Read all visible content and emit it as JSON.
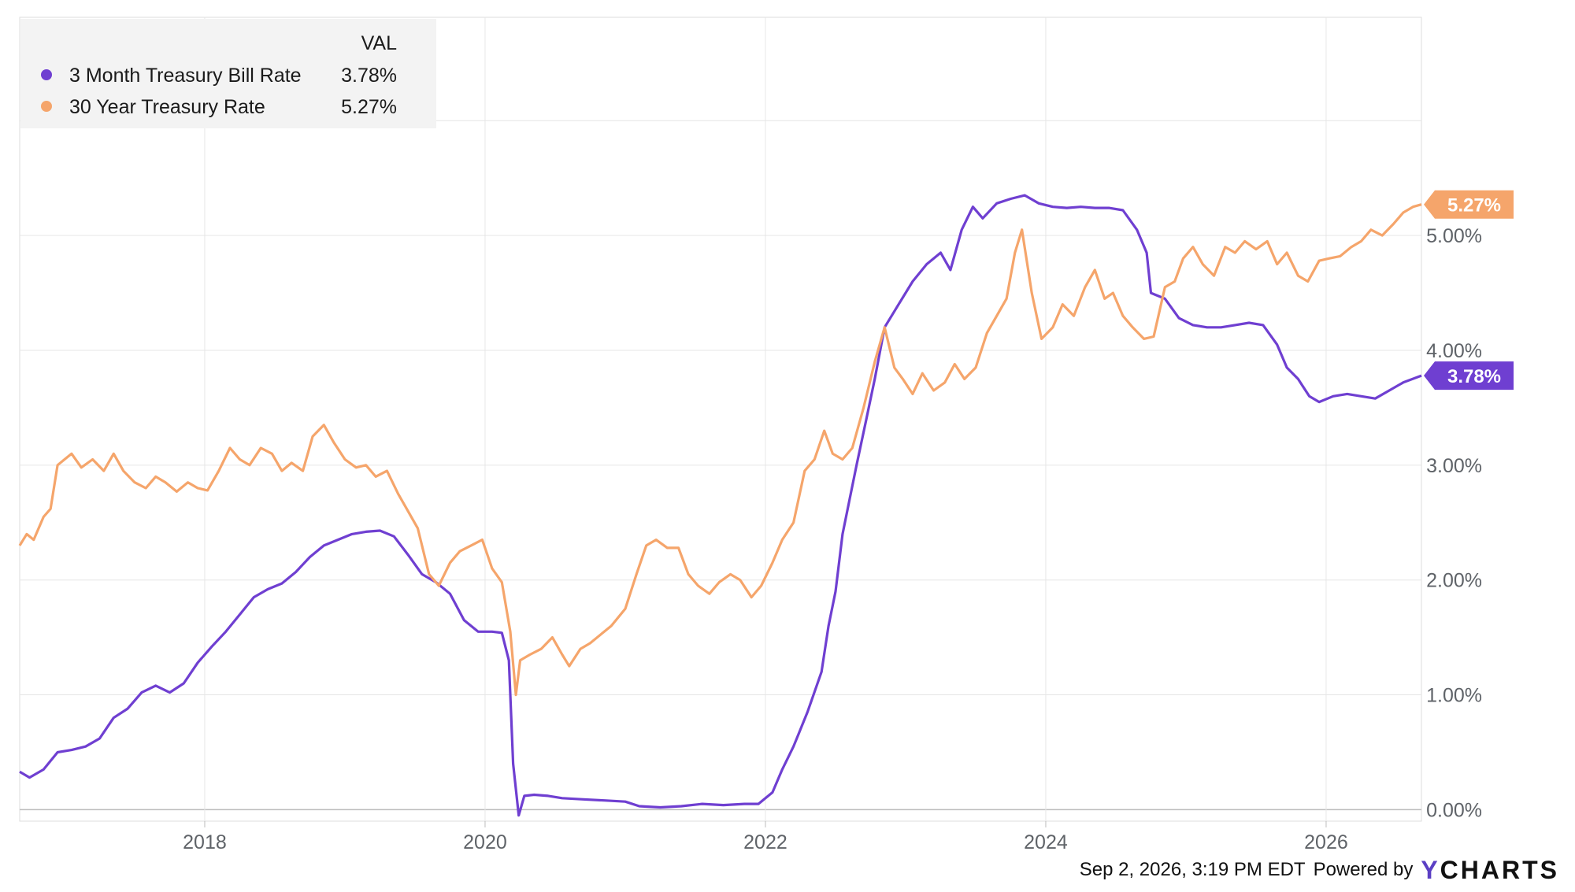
{
  "chart_data": {
    "type": "line",
    "legend": {
      "header": "VAL",
      "placement": "top-left",
      "entries": [
        {
          "name": "3 Month Treasury Bill Rate",
          "value": "3.78%",
          "color": "#6f3fd1"
        },
        {
          "name": "30 Year Treasury Rate",
          "value": "5.27%",
          "color": "#f5a56b"
        }
      ]
    },
    "x_ticks": [
      "2018",
      "2020",
      "2022",
      "2024",
      "2026"
    ],
    "x_tick_values": [
      2018,
      2020,
      2022,
      2024,
      2026
    ],
    "xlim": [
      2016.68,
      2026.68
    ],
    "y_ticks": [
      "0.00%",
      "1.00%",
      "2.00%",
      "3.00%",
      "4.00%",
      "5.00%"
    ],
    "y_tick_values": [
      0,
      1,
      2,
      3,
      4,
      5
    ],
    "ylim": [
      -0.1,
      6.9
    ],
    "grid": true,
    "series": [
      {
        "name": "3 Month Treasury Bill Rate",
        "color": "#6f3fd1",
        "end_label": "3.78%",
        "points": [
          [
            2016.68,
            0.33
          ],
          [
            2016.75,
            0.28
          ],
          [
            2016.85,
            0.35
          ],
          [
            2016.95,
            0.5
          ],
          [
            2017.05,
            0.52
          ],
          [
            2017.15,
            0.55
          ],
          [
            2017.25,
            0.62
          ],
          [
            2017.35,
            0.8
          ],
          [
            2017.45,
            0.88
          ],
          [
            2017.55,
            1.02
          ],
          [
            2017.65,
            1.08
          ],
          [
            2017.75,
            1.02
          ],
          [
            2017.85,
            1.1
          ],
          [
            2017.95,
            1.28
          ],
          [
            2018.05,
            1.42
          ],
          [
            2018.15,
            1.55
          ],
          [
            2018.25,
            1.7
          ],
          [
            2018.35,
            1.85
          ],
          [
            2018.45,
            1.92
          ],
          [
            2018.55,
            1.97
          ],
          [
            2018.65,
            2.07
          ],
          [
            2018.75,
            2.2
          ],
          [
            2018.85,
            2.3
          ],
          [
            2018.95,
            2.35
          ],
          [
            2019.05,
            2.4
          ],
          [
            2019.15,
            2.42
          ],
          [
            2019.25,
            2.43
          ],
          [
            2019.35,
            2.38
          ],
          [
            2019.45,
            2.22
          ],
          [
            2019.55,
            2.05
          ],
          [
            2019.65,
            1.98
          ],
          [
            2019.75,
            1.88
          ],
          [
            2019.85,
            1.65
          ],
          [
            2019.95,
            1.55
          ],
          [
            2020.05,
            1.55
          ],
          [
            2020.12,
            1.54
          ],
          [
            2020.17,
            1.3
          ],
          [
            2020.2,
            0.4
          ],
          [
            2020.24,
            -0.05
          ],
          [
            2020.28,
            0.12
          ],
          [
            2020.35,
            0.13
          ],
          [
            2020.45,
            0.12
          ],
          [
            2020.55,
            0.1
          ],
          [
            2020.7,
            0.09
          ],
          [
            2020.85,
            0.08
          ],
          [
            2021.0,
            0.07
          ],
          [
            2021.1,
            0.03
          ],
          [
            2021.25,
            0.02
          ],
          [
            2021.4,
            0.03
          ],
          [
            2021.55,
            0.05
          ],
          [
            2021.7,
            0.04
          ],
          [
            2021.85,
            0.05
          ],
          [
            2021.95,
            0.05
          ],
          [
            2022.05,
            0.15
          ],
          [
            2022.12,
            0.35
          ],
          [
            2022.2,
            0.55
          ],
          [
            2022.3,
            0.85
          ],
          [
            2022.4,
            1.2
          ],
          [
            2022.45,
            1.6
          ],
          [
            2022.5,
            1.9
          ],
          [
            2022.55,
            2.4
          ],
          [
            2022.6,
            2.7
          ],
          [
            2022.65,
            3.0
          ],
          [
            2022.72,
            3.4
          ],
          [
            2022.78,
            3.75
          ],
          [
            2022.85,
            4.2
          ],
          [
            2022.95,
            4.4
          ],
          [
            2023.05,
            4.6
          ],
          [
            2023.15,
            4.75
          ],
          [
            2023.25,
            4.85
          ],
          [
            2023.32,
            4.7
          ],
          [
            2023.4,
            5.05
          ],
          [
            2023.48,
            5.25
          ],
          [
            2023.55,
            5.15
          ],
          [
            2023.65,
            5.28
          ],
          [
            2023.75,
            5.32
          ],
          [
            2023.85,
            5.35
          ],
          [
            2023.95,
            5.28
          ],
          [
            2024.05,
            5.25
          ],
          [
            2024.15,
            5.24
          ],
          [
            2024.25,
            5.25
          ],
          [
            2024.35,
            5.24
          ],
          [
            2024.45,
            5.24
          ],
          [
            2024.55,
            5.22
          ],
          [
            2024.65,
            5.05
          ],
          [
            2024.72,
            4.85
          ],
          [
            2024.75,
            4.5
          ],
          [
            2024.85,
            4.45
          ],
          [
            2024.95,
            4.28
          ],
          [
            2025.05,
            4.22
          ],
          [
            2025.15,
            4.2
          ],
          [
            2025.25,
            4.2
          ],
          [
            2025.35,
            4.22
          ],
          [
            2025.45,
            4.24
          ],
          [
            2025.55,
            4.22
          ],
          [
            2025.65,
            4.05
          ],
          [
            2025.72,
            3.85
          ],
          [
            2025.8,
            3.75
          ],
          [
            2025.88,
            3.6
          ],
          [
            2025.95,
            3.55
          ],
          [
            2026.05,
            3.6
          ],
          [
            2026.15,
            3.62
          ],
          [
            2026.25,
            3.6
          ],
          [
            2026.35,
            3.58
          ],
          [
            2026.45,
            3.65
          ],
          [
            2026.55,
            3.72
          ],
          [
            2026.68,
            3.78
          ]
        ]
      },
      {
        "name": "30 Year Treasury Rate",
        "color": "#f5a56b",
        "end_label": "5.27%",
        "points": [
          [
            2016.68,
            2.3
          ],
          [
            2016.73,
            2.4
          ],
          [
            2016.78,
            2.35
          ],
          [
            2016.85,
            2.55
          ],
          [
            2016.9,
            2.62
          ],
          [
            2016.95,
            3.0
          ],
          [
            2017.0,
            3.05
          ],
          [
            2017.05,
            3.1
          ],
          [
            2017.12,
            2.98
          ],
          [
            2017.2,
            3.05
          ],
          [
            2017.28,
            2.95
          ],
          [
            2017.35,
            3.1
          ],
          [
            2017.42,
            2.95
          ],
          [
            2017.5,
            2.85
          ],
          [
            2017.58,
            2.8
          ],
          [
            2017.65,
            2.9
          ],
          [
            2017.72,
            2.85
          ],
          [
            2017.8,
            2.77
          ],
          [
            2017.88,
            2.85
          ],
          [
            2017.95,
            2.8
          ],
          [
            2018.02,
            2.78
          ],
          [
            2018.1,
            2.95
          ],
          [
            2018.18,
            3.15
          ],
          [
            2018.25,
            3.05
          ],
          [
            2018.32,
            3.0
          ],
          [
            2018.4,
            3.15
          ],
          [
            2018.48,
            3.1
          ],
          [
            2018.55,
            2.95
          ],
          [
            2018.62,
            3.02
          ],
          [
            2018.7,
            2.95
          ],
          [
            2018.77,
            3.25
          ],
          [
            2018.85,
            3.35
          ],
          [
            2018.92,
            3.2
          ],
          [
            2019.0,
            3.05
          ],
          [
            2019.08,
            2.98
          ],
          [
            2019.15,
            3.0
          ],
          [
            2019.22,
            2.9
          ],
          [
            2019.3,
            2.95
          ],
          [
            2019.38,
            2.75
          ],
          [
            2019.45,
            2.6
          ],
          [
            2019.52,
            2.45
          ],
          [
            2019.6,
            2.05
          ],
          [
            2019.67,
            1.95
          ],
          [
            2019.75,
            2.15
          ],
          [
            2019.82,
            2.25
          ],
          [
            2019.9,
            2.3
          ],
          [
            2019.98,
            2.35
          ],
          [
            2020.05,
            2.1
          ],
          [
            2020.12,
            1.98
          ],
          [
            2020.18,
            1.55
          ],
          [
            2020.22,
            1.0
          ],
          [
            2020.25,
            1.3
          ],
          [
            2020.32,
            1.35
          ],
          [
            2020.4,
            1.4
          ],
          [
            2020.48,
            1.5
          ],
          [
            2020.55,
            1.35
          ],
          [
            2020.6,
            1.25
          ],
          [
            2020.68,
            1.4
          ],
          [
            2020.75,
            1.45
          ],
          [
            2020.82,
            1.52
          ],
          [
            2020.9,
            1.6
          ],
          [
            2021.0,
            1.75
          ],
          [
            2021.08,
            2.05
          ],
          [
            2021.15,
            2.3
          ],
          [
            2021.22,
            2.35
          ],
          [
            2021.3,
            2.28
          ],
          [
            2021.38,
            2.28
          ],
          [
            2021.45,
            2.05
          ],
          [
            2021.52,
            1.95
          ],
          [
            2021.6,
            1.88
          ],
          [
            2021.67,
            1.98
          ],
          [
            2021.75,
            2.05
          ],
          [
            2021.82,
            2.0
          ],
          [
            2021.9,
            1.85
          ],
          [
            2021.97,
            1.95
          ],
          [
            2022.05,
            2.15
          ],
          [
            2022.12,
            2.35
          ],
          [
            2022.2,
            2.5
          ],
          [
            2022.28,
            2.95
          ],
          [
            2022.35,
            3.05
          ],
          [
            2022.42,
            3.3
          ],
          [
            2022.48,
            3.1
          ],
          [
            2022.55,
            3.05
          ],
          [
            2022.62,
            3.15
          ],
          [
            2022.7,
            3.5
          ],
          [
            2022.78,
            3.9
          ],
          [
            2022.85,
            4.2
          ],
          [
            2022.92,
            3.85
          ],
          [
            2022.98,
            3.75
          ],
          [
            2023.05,
            3.62
          ],
          [
            2023.12,
            3.8
          ],
          [
            2023.2,
            3.65
          ],
          [
            2023.28,
            3.72
          ],
          [
            2023.35,
            3.88
          ],
          [
            2023.42,
            3.75
          ],
          [
            2023.5,
            3.85
          ],
          [
            2023.58,
            4.15
          ],
          [
            2023.65,
            4.3
          ],
          [
            2023.72,
            4.45
          ],
          [
            2023.78,
            4.85
          ],
          [
            2023.83,
            5.05
          ],
          [
            2023.9,
            4.5
          ],
          [
            2023.97,
            4.1
          ],
          [
            2024.05,
            4.2
          ],
          [
            2024.12,
            4.4
          ],
          [
            2024.2,
            4.3
          ],
          [
            2024.28,
            4.55
          ],
          [
            2024.35,
            4.7
          ],
          [
            2024.42,
            4.45
          ],
          [
            2024.48,
            4.5
          ],
          [
            2024.55,
            4.3
          ],
          [
            2024.62,
            4.2
          ],
          [
            2024.7,
            4.1
          ],
          [
            2024.77,
            4.12
          ],
          [
            2024.85,
            4.55
          ],
          [
            2024.92,
            4.6
          ],
          [
            2024.98,
            4.8
          ],
          [
            2025.05,
            4.9
          ],
          [
            2025.12,
            4.75
          ],
          [
            2025.2,
            4.65
          ],
          [
            2025.28,
            4.9
          ],
          [
            2025.35,
            4.85
          ],
          [
            2025.42,
            4.95
          ],
          [
            2025.5,
            4.88
          ],
          [
            2025.58,
            4.95
          ],
          [
            2025.65,
            4.75
          ],
          [
            2025.72,
            4.85
          ],
          [
            2025.8,
            4.65
          ],
          [
            2025.87,
            4.6
          ],
          [
            2025.95,
            4.78
          ],
          [
            2026.02,
            4.8
          ],
          [
            2026.1,
            4.82
          ],
          [
            2026.18,
            4.9
          ],
          [
            2026.25,
            4.95
          ],
          [
            2026.32,
            5.05
          ],
          [
            2026.4,
            5.0
          ],
          [
            2026.48,
            5.1
          ],
          [
            2026.55,
            5.2
          ],
          [
            2026.62,
            5.25
          ],
          [
            2026.68,
            5.27
          ]
        ]
      }
    ]
  },
  "footer": {
    "timestamp": "Sep 2, 2026, 3:19 PM EDT",
    "powered_by": "Powered by",
    "brand_first": "Y",
    "brand_rest": "CHARTS"
  }
}
